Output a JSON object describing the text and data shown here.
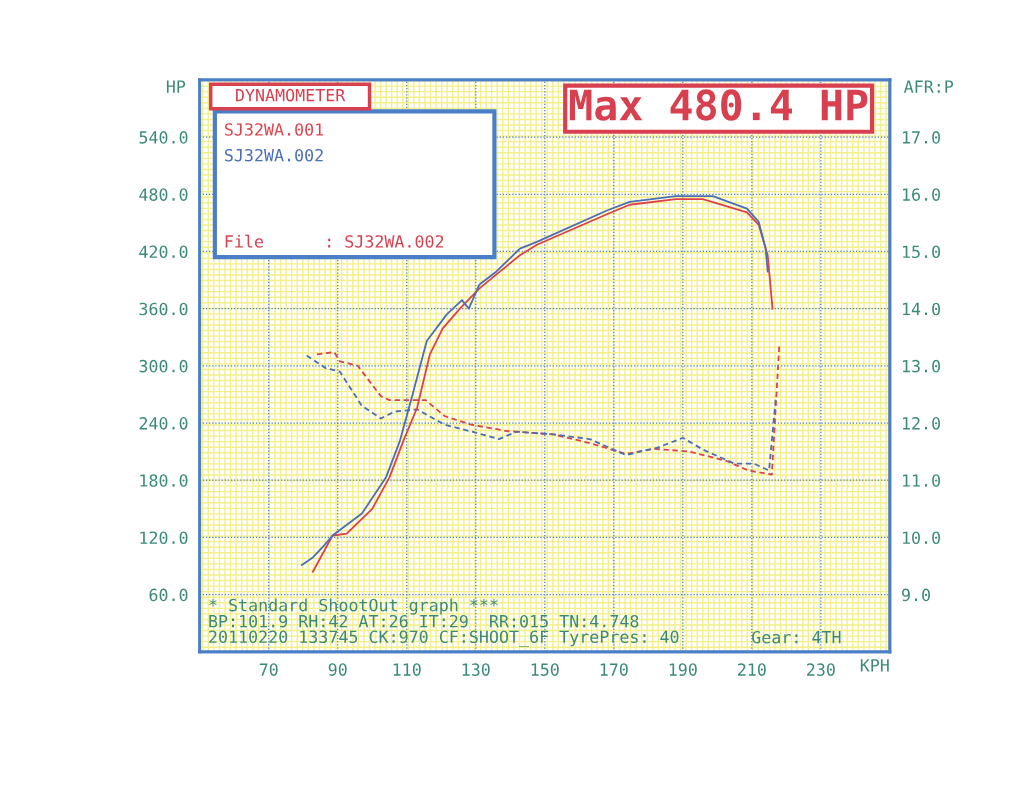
{
  "chart_data": {
    "type": "line",
    "title": "Max 480.4 HP",
    "subtitle": "DYNAMOMETER",
    "xlabel": "KPH",
    "ylabel": "HP",
    "y2label": "AFR:P",
    "annotations": [
      "File      : SJ32WA.002",
      "* Standard ShootOut graph ***",
      "BP:101.9 RH:42 AT:26 IT:29  RR:015 TN:4.748",
      "20110220 133745 CK:970 CF:SHOOT_6F TyrePres: 40",
      "Gear: 4TH"
    ],
    "series": [
      {
        "name": "SJ32WA.001",
        "color": "#e0404a",
        "x": [
          82.8,
          88.5,
          92.6,
          100,
          105,
          109,
          113,
          116.7,
          120.4,
          125.4,
          131,
          136,
          142.8,
          147.7,
          168,
          174.6,
          188,
          195.8,
          208.6,
          212,
          214.6,
          216
        ],
        "values": [
          84,
          122,
          124,
          150,
          183,
          221,
          256,
          312,
          339,
          360,
          381,
          396,
          416,
          427,
          459,
          469,
          475,
          475,
          461,
          448,
          416,
          360
        ]
      },
      {
        "name": "SJ32WA.002",
        "color": "#4a6fb8",
        "x": [
          79.6,
          82.8,
          85.7,
          88.5,
          97,
          104,
          108,
          111.7,
          115.8,
          121.6,
          126,
          128,
          131,
          136,
          142.8,
          147.7,
          168,
          174.6,
          188,
          198.7,
          208.6,
          212,
          214,
          214.6
        ],
        "values": [
          91,
          99,
          110,
          122,
          145,
          183,
          221,
          270,
          326,
          354,
          369,
          360,
          385,
          399,
          423,
          430,
          463,
          472,
          478,
          478,
          465,
          451,
          423,
          399
        ]
      },
      {
        "color": "#e0404a",
        "axis": "y2",
        "line_style": "dashed",
        "x": [
          84,
          89,
          90.6,
          95.8,
          102.5,
          105,
          115.5,
          121,
          128.8,
          139,
          152.6,
          163,
          173.5,
          181.6,
          192,
          202.5,
          209,
          215.8,
          218
        ],
        "values": [
          13.2,
          13.24,
          13.08,
          13.0,
          12.47,
          12.4,
          12.4,
          12.12,
          11.97,
          11.86,
          11.8,
          11.65,
          11.46,
          11.55,
          11.5,
          11.34,
          11.17,
          11.1,
          13.4
        ]
      },
      {
        "color": "#4a6fb8",
        "axis": "y2",
        "line_style": "dashed",
        "x": [
          81,
          86.5,
          90.6,
          97,
          102.5,
          106.5,
          113,
          121,
          128.8,
          136.7,
          142,
          152.6,
          163,
          173.5,
          182.7,
          190,
          196,
          205,
          210.6,
          215,
          217
        ],
        "values": [
          13.18,
          12.96,
          12.9,
          12.3,
          12.08,
          12.2,
          12.24,
          11.97,
          11.85,
          11.72,
          11.85,
          11.8,
          11.72,
          11.44,
          11.57,
          11.74,
          11.53,
          11.29,
          11.29,
          11.17,
          12.47
        ]
      }
    ],
    "xlim": [
      50,
      250
    ],
    "xticks": [
      70,
      90,
      110,
      130,
      150,
      170,
      190,
      210,
      230
    ],
    "ylim": [
      0,
      600
    ],
    "yticks": [
      {
        "value": 60,
        "label": "60.0"
      },
      {
        "value": 120,
        "label": "120.0"
      },
      {
        "value": 180,
        "label": "180.0"
      },
      {
        "value": 240,
        "label": "240.0"
      },
      {
        "value": 300,
        "label": "300.0"
      },
      {
        "value": 360,
        "label": "360.0"
      },
      {
        "value": 420,
        "label": "420.0"
      },
      {
        "value": 480,
        "label": "480.0"
      },
      {
        "value": 540,
        "label": "540.0"
      }
    ],
    "y2lim": [
      8,
      18
    ],
    "y2ticks": [
      {
        "value": 9,
        "label": "9.0"
      },
      {
        "value": 10,
        "label": "10.0"
      },
      {
        "value": 11,
        "label": "11.0"
      },
      {
        "value": 12,
        "label": "12.0"
      },
      {
        "value": 13,
        "label": "13.0"
      },
      {
        "value": 14,
        "label": "14.0"
      },
      {
        "value": 15,
        "label": "15.0"
      },
      {
        "value": 16,
        "label": "16.0"
      },
      {
        "value": 17,
        "label": "17.0"
      }
    ],
    "grid": true,
    "legend": "top left",
    "line_style": "solid",
    "marker": "none"
  }
}
